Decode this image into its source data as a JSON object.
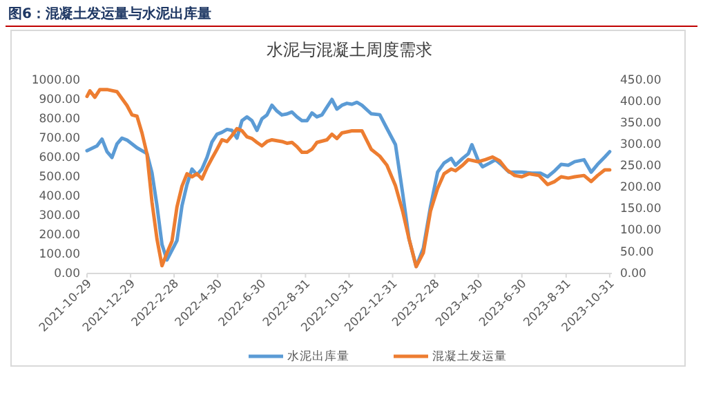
{
  "chart_data": {
    "type": "line",
    "title": "图6：混凝土发运量与水泥出库量",
    "subtitle": "水泥与混凝土周度需求",
    "legend": "bottom",
    "grid": false,
    "marker": "none",
    "line_style": "solid",
    "xlim": [
      "2021-10-29",
      "2023-11-03"
    ],
    "xticks": [
      {
        "value": "2021-10-29",
        "label": "2021-10-29"
      },
      {
        "value": "2021-12-29",
        "label": "2021-12-29"
      },
      {
        "value": "2022-02-28",
        "label": "2022-2-28"
      },
      {
        "value": "2022-04-30",
        "label": "2022-4-30"
      },
      {
        "value": "2022-06-30",
        "label": "2022-6-30"
      },
      {
        "value": "2022-08-31",
        "label": "2022-8-31"
      },
      {
        "value": "2022-10-31",
        "label": "2022-10-31"
      },
      {
        "value": "2022-12-31",
        "label": "2022-12-31"
      },
      {
        "value": "2023-02-28",
        "label": "2023-2-28"
      },
      {
        "value": "2023-04-30",
        "label": "2023-4-30"
      },
      {
        "value": "2023-06-30",
        "label": "2023-6-30"
      },
      {
        "value": "2023-08-31",
        "label": "2023-8-31"
      },
      {
        "value": "2023-10-31",
        "label": "2023-10-31"
      }
    ],
    "ylim": [
      0,
      1000
    ],
    "yticks": [
      {
        "value": 0,
        "label": "0.00"
      },
      {
        "value": 100,
        "label": "100.00"
      },
      {
        "value": 200,
        "label": "200.00"
      },
      {
        "value": 300,
        "label": "300.00"
      },
      {
        "value": 400,
        "label": "400.00"
      },
      {
        "value": 500,
        "label": "500.00"
      },
      {
        "value": 600,
        "label": "600.00"
      },
      {
        "value": 700,
        "label": "700.00"
      },
      {
        "value": 800,
        "label": "800.00"
      },
      {
        "value": 900,
        "label": "900.00"
      },
      {
        "value": 1000,
        "label": "1000.00"
      }
    ],
    "y2lim": [
      0,
      450
    ],
    "y2ticks": [
      {
        "value": 0,
        "label": "0.00"
      },
      {
        "value": 50,
        "label": "50.00"
      },
      {
        "value": 100,
        "label": "100.00"
      },
      {
        "value": 150,
        "label": "150.00"
      },
      {
        "value": 200,
        "label": "200.00"
      },
      {
        "value": 250,
        "label": "250.00"
      },
      {
        "value": 300,
        "label": "300.00"
      },
      {
        "value": 350,
        "label": "350.00"
      },
      {
        "value": 400,
        "label": "400.00"
      },
      {
        "value": 450,
        "label": "450.00"
      }
    ],
    "series": [
      {
        "name": "水泥出库量",
        "color": "#5b9bd5",
        "x": [
          "2021-10-29",
          "2021-11-12",
          "2021-11-19",
          "2021-11-26",
          "2021-12-03",
          "2021-12-10",
          "2021-12-17",
          "2021-12-24",
          "2022-01-07",
          "2022-01-21",
          "2022-01-28",
          "2022-02-04",
          "2022-02-11",
          "2022-02-18",
          "2022-02-25",
          "2022-03-04",
          "2022-03-11",
          "2022-03-18",
          "2022-03-25",
          "2022-04-01",
          "2022-04-08",
          "2022-04-15",
          "2022-04-22",
          "2022-04-29",
          "2022-05-06",
          "2022-05-13",
          "2022-05-20",
          "2022-05-27",
          "2022-06-03",
          "2022-06-10",
          "2022-06-17",
          "2022-06-24",
          "2022-07-01",
          "2022-07-08",
          "2022-07-15",
          "2022-07-22",
          "2022-07-29",
          "2022-08-05",
          "2022-08-12",
          "2022-08-19",
          "2022-08-26",
          "2022-09-02",
          "2022-09-09",
          "2022-09-16",
          "2022-09-23",
          "2022-09-30",
          "2022-10-07",
          "2022-10-14",
          "2022-10-21",
          "2022-10-28",
          "2022-11-04",
          "2022-11-11",
          "2022-11-18",
          "2022-12-01",
          "2022-12-13",
          "2022-12-23",
          "2023-01-04",
          "2023-01-14",
          "2023-01-23",
          "2023-02-02",
          "2023-02-12",
          "2023-02-22",
          "2023-03-04",
          "2023-03-13",
          "2023-03-23",
          "2023-03-29",
          "2023-04-08",
          "2023-04-16",
          "2023-04-21",
          "2023-04-30",
          "2023-05-06",
          "2023-05-16",
          "2023-05-24",
          "2023-06-02",
          "2023-06-12",
          "2023-06-30",
          "2023-07-14",
          "2023-07-26",
          "2023-08-05",
          "2023-08-15",
          "2023-08-24",
          "2023-09-03",
          "2023-09-12",
          "2023-09-25",
          "2023-10-05",
          "2023-10-14",
          "2023-10-24",
          "2023-10-31"
        ],
        "values": [
          635,
          660,
          695,
          630,
          600,
          670,
          700,
          690,
          650,
          620,
          520,
          350,
          150,
          70,
          120,
          170,
          350,
          460,
          540,
          510,
          540,
          600,
          680,
          720,
          730,
          745,
          740,
          700,
          790,
          810,
          790,
          740,
          800,
          820,
          870,
          840,
          820,
          825,
          835,
          810,
          790,
          790,
          830,
          810,
          820,
          860,
          900,
          850,
          870,
          880,
          875,
          885,
          870,
          826,
          821,
          750,
          666,
          416,
          178,
          36,
          131,
          345,
          524,
          571,
          595,
          560,
          595,
          619,
          666,
          583,
          552,
          571,
          588,
          560,
          524,
          524,
          519,
          519,
          500,
          531,
          564,
          560,
          578,
          588,
          524,
          564,
          602,
          630
        ]
      },
      {
        "name": "混凝土发运量",
        "color": "#ed7d31",
        "axis": "y2",
        "x": [
          "2021-10-29",
          "2021-11-02",
          "2021-11-09",
          "2021-11-16",
          "2021-11-26",
          "2021-12-10",
          "2021-12-17",
          "2021-12-24",
          "2021-12-31",
          "2022-01-07",
          "2022-01-14",
          "2022-01-21",
          "2022-01-28",
          "2022-02-04",
          "2022-02-11",
          "2022-02-18",
          "2022-02-25",
          "2022-03-04",
          "2022-03-11",
          "2022-03-18",
          "2022-03-25",
          "2022-04-01",
          "2022-04-08",
          "2022-04-15",
          "2022-04-22",
          "2022-04-29",
          "2022-05-06",
          "2022-05-13",
          "2022-05-20",
          "2022-05-27",
          "2022-06-03",
          "2022-06-10",
          "2022-06-17",
          "2022-06-24",
          "2022-07-01",
          "2022-07-08",
          "2022-07-15",
          "2022-07-29",
          "2022-08-05",
          "2022-08-12",
          "2022-08-19",
          "2022-08-26",
          "2022-09-02",
          "2022-09-09",
          "2022-09-16",
          "2022-09-30",
          "2022-10-07",
          "2022-10-14",
          "2022-10-21",
          "2022-11-04",
          "2022-11-18",
          "2022-12-01",
          "2022-12-13",
          "2022-12-23",
          "2023-01-04",
          "2023-01-14",
          "2023-01-23",
          "2023-02-02",
          "2023-02-12",
          "2023-02-22",
          "2023-03-04",
          "2023-03-13",
          "2023-03-23",
          "2023-03-29",
          "2023-04-08",
          "2023-04-16",
          "2023-04-30",
          "2023-05-10",
          "2023-05-20",
          "2023-05-30",
          "2023-06-09",
          "2023-06-20",
          "2023-06-30",
          "2023-07-10",
          "2023-07-24",
          "2023-08-05",
          "2023-08-15",
          "2023-08-24",
          "2023-09-03",
          "2023-09-12",
          "2023-09-25",
          "2023-10-05",
          "2023-10-14",
          "2023-10-24",
          "2023-10-31"
        ],
        "values": [
          412,
          425,
          410,
          428,
          428,
          423,
          407,
          391,
          369,
          366,
          327,
          278,
          166,
          80,
          18,
          48,
          75,
          155,
          203,
          232,
          225,
          232,
          220,
          246,
          268,
          289,
          311,
          307,
          321,
          337,
          332,
          318,
          314,
          305,
          297,
          307,
          311,
          307,
          303,
          305,
          295,
          282,
          282,
          289,
          305,
          311,
          324,
          314,
          327,
          332,
          332,
          289,
          273,
          252,
          204,
          145,
          80,
          16,
          48,
          145,
          198,
          232,
          243,
          239,
          252,
          265,
          260,
          265,
          271,
          262,
          241,
          228,
          225,
          232,
          228,
          207,
          214,
          225,
          222,
          225,
          228,
          214,
          228,
          241,
          241
        ]
      }
    ]
  }
}
